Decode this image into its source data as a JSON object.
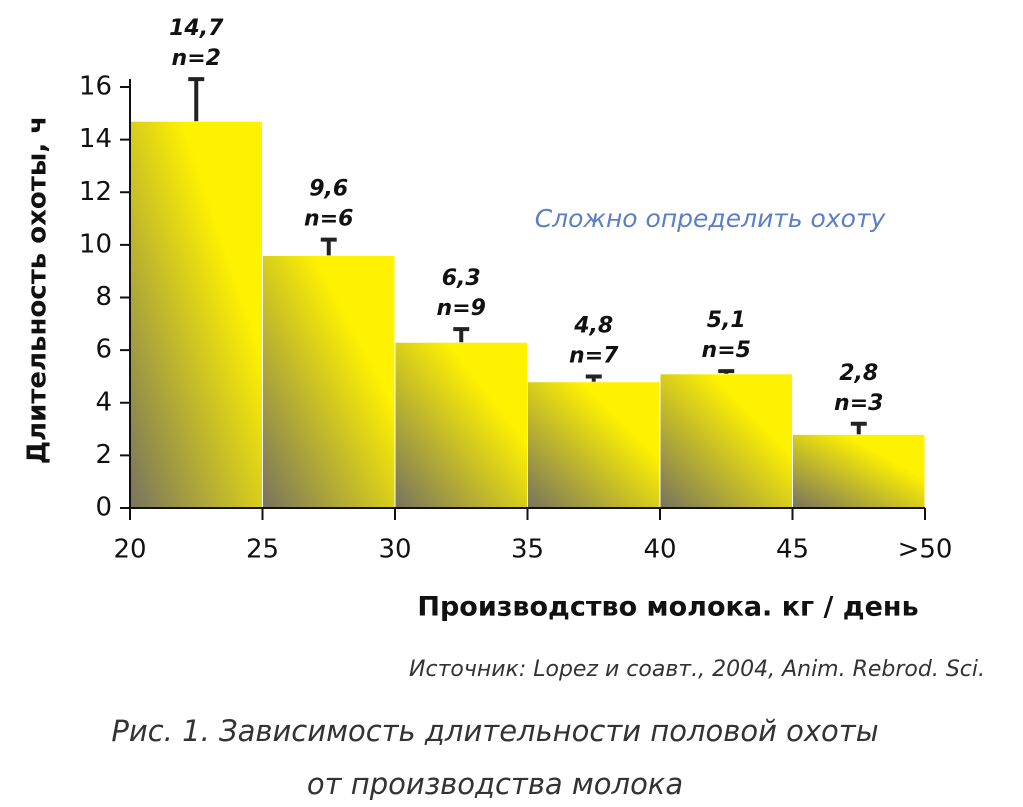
{
  "chart_data": {
    "type": "histogram",
    "y_label": "Длительность охоты, ч",
    "x_label": "Производство молока. кг / день",
    "annotation": "Сложно определить охоту",
    "source": "Источник: Lopez и соавт., 2004, Anim. Rebrod. Sci.",
    "caption": [
      "Рис. 1. Зависимость длительности половой охоты",
      "от производства молока"
    ],
    "bins": [
      20,
      25,
      30,
      35,
      40,
      45,
      50
    ],
    "values": [
      14.7,
      9.6,
      6.3,
      4.8,
      5.1,
      2.8
    ],
    "value_labels": [
      "14,7",
      "9,6",
      "6,3",
      "4,8",
      "5,1",
      "2,8"
    ],
    "errors": [
      1.6,
      0.6,
      0.5,
      0.2,
      0.1,
      0.4
    ],
    "n_labels": [
      "n=2",
      "n=6",
      "n=9",
      "n=7",
      "n=5",
      "n=3"
    ],
    "color": "#fff200",
    "xlim": [
      20,
      50
    ],
    "xticks": [
      20,
      25,
      30,
      35,
      40,
      45,
      {
        "value": 50,
        "label": ">50"
      }
    ],
    "ylim": [
      0,
      16
    ],
    "yticks": [
      0,
      2,
      4,
      6,
      8,
      10,
      12,
      14,
      16
    ]
  }
}
